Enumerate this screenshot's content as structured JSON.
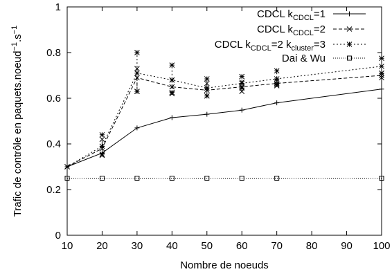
{
  "chart_data": {
    "type": "line",
    "xlabel": "Nombre de noeuds",
    "ylabel": {
      "base": "Trafic de contrôle en paquets.noeud",
      "sup1": "−1",
      "mid": ".s",
      "sup2": "−1"
    },
    "xlim": [
      10,
      100
    ],
    "ylim": [
      0,
      1
    ],
    "xticks": [
      10,
      20,
      30,
      40,
      50,
      60,
      70,
      80,
      90,
      100
    ],
    "yticks": [
      0,
      0.2,
      0.4,
      0.6,
      0.8,
      1
    ],
    "ytick_labels": [
      "0",
      "0.2",
      "0.4",
      "0.6",
      "0.8",
      "1"
    ],
    "grid": false,
    "legend_position": "top-right",
    "series": [
      {
        "id": "cdcl1",
        "legend": {
          "text": "CDCL k",
          "sub": "CDCL",
          "tail": "=1"
        },
        "marker": "plus",
        "dash": "none",
        "x": [
          10,
          20,
          30,
          40,
          50,
          60,
          70,
          100
        ],
        "y": [
          0.3,
          0.36,
          0.47,
          0.515,
          0.53,
          0.548,
          0.58,
          0.64
        ],
        "errors": []
      },
      {
        "id": "cdcl2",
        "legend": {
          "text": "CDCL k",
          "sub": "CDCL",
          "tail": "=2"
        },
        "marker": "cross",
        "dash": "5,3",
        "x": [
          10,
          20,
          30,
          40,
          50,
          60,
          70,
          100
        ],
        "y": [
          0.3,
          0.38,
          0.69,
          0.65,
          0.635,
          0.65,
          0.665,
          0.7
        ],
        "errors": [
          [
            0.3,
            0.3
          ],
          [
            0.35,
            0.42
          ],
          [
            0.63,
            0.73
          ],
          [
            0.62,
            0.68
          ],
          [
            0.61,
            0.665
          ],
          [
            0.63,
            0.67
          ],
          [
            0.655,
            0.675
          ],
          [
            0.69,
            0.71
          ]
        ]
      },
      {
        "id": "cdcl3",
        "legend": {
          "text": "CDCL k",
          "sub": "CDCL",
          "tail": "=2 k",
          "sub2": "cluster",
          "tail2": "=3"
        },
        "marker": "star",
        "dash": "2,3",
        "x": [
          10,
          20,
          30,
          40,
          50,
          60,
          70,
          100
        ],
        "y": [
          0.3,
          0.39,
          0.71,
          0.68,
          0.645,
          0.665,
          0.685,
          0.74
        ],
        "errors": [
          [
            0.3,
            0.3
          ],
          [
            0.355,
            0.44
          ],
          [
            0.63,
            0.8
          ],
          [
            0.625,
            0.745
          ],
          [
            0.61,
            0.685
          ],
          [
            0.645,
            0.695
          ],
          [
            0.66,
            0.72
          ],
          [
            0.71,
            0.775
          ]
        ]
      },
      {
        "id": "daiwu",
        "legend": {
          "text": "Dai & Wu"
        },
        "marker": "square",
        "dash": "1,2",
        "x": [
          10,
          20,
          30,
          40,
          50,
          60,
          70,
          100
        ],
        "y": [
          0.25,
          0.25,
          0.25,
          0.25,
          0.25,
          0.25,
          0.25,
          0.25
        ],
        "errors": []
      }
    ]
  }
}
